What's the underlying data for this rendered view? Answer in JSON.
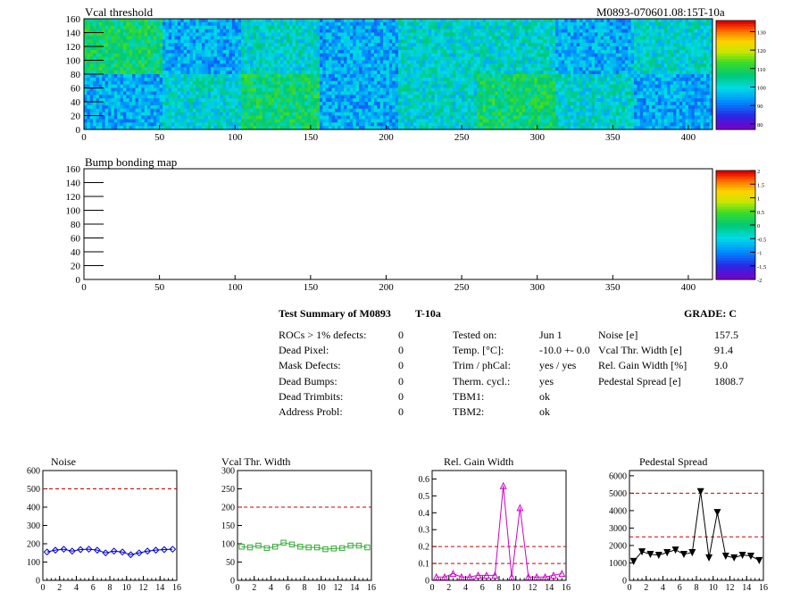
{
  "maps": [
    {
      "title": "Vcal threshold",
      "id_label": "M0893-070601.08:15T-10a",
      "xlim": [
        0,
        416
      ],
      "ylim": [
        0,
        160
      ],
      "xticks": [
        0,
        50,
        100,
        150,
        200,
        250,
        300,
        350,
        400
      ],
      "yticks": [
        0,
        20,
        40,
        60,
        80,
        100,
        120,
        140,
        160
      ],
      "palette_ticks": [
        "80",
        "90",
        "100",
        "110",
        "120",
        "130"
      ],
      "palette_values": [
        80,
        90,
        100,
        110,
        120,
        130
      ],
      "palette_range": [
        77,
        136
      ],
      "roc_tiles": [
        {
          "row": "top",
          "col": 0,
          "level": "green"
        },
        {
          "row": "top",
          "col": 1,
          "level": "blue"
        },
        {
          "row": "top",
          "col": 2,
          "level": "cyan"
        },
        {
          "row": "top",
          "col": 3,
          "level": "blue"
        },
        {
          "row": "top",
          "col": 4,
          "level": "cyan"
        },
        {
          "row": "top",
          "col": 5,
          "level": "cyan"
        },
        {
          "row": "top",
          "col": 6,
          "level": "blue"
        },
        {
          "row": "top",
          "col": 7,
          "level": "cyan"
        },
        {
          "row": "bottom",
          "col": 0,
          "level": "blue"
        },
        {
          "row": "bottom",
          "col": 1,
          "level": "cyan"
        },
        {
          "row": "bottom",
          "col": 2,
          "level": "green"
        },
        {
          "row": "bottom",
          "col": 3,
          "level": "blue"
        },
        {
          "row": "bottom",
          "col": 4,
          "level": "cyan"
        },
        {
          "row": "bottom",
          "col": 5,
          "level": "green"
        },
        {
          "row": "bottom",
          "col": 6,
          "level": "cyan"
        },
        {
          "row": "bottom",
          "col": 7,
          "level": "blue"
        }
      ]
    },
    {
      "title": "Bump bonding map",
      "id_label": "",
      "xlim": [
        0,
        416
      ],
      "ylim": [
        0,
        160
      ],
      "xticks": [
        0,
        50,
        100,
        150,
        200,
        250,
        300,
        350,
        400
      ],
      "yticks": [
        0,
        20,
        40,
        60,
        80,
        100,
        120,
        140,
        160
      ],
      "palette_ticks": [
        "-2",
        "-1.5",
        "-1",
        "-0.5",
        "0",
        "0.5",
        "1",
        "1.5",
        "2"
      ],
      "palette_values": [
        -2,
        -1.5,
        -1,
        -0.5,
        0,
        0.5,
        1,
        1.5,
        2
      ],
      "palette_range": [
        -2,
        2
      ]
    }
  ],
  "summary": {
    "header": "Test Summary of M0893",
    "temp_tag": "T-10a",
    "grade": "GRADE:  C",
    "col1": [
      {
        "label": "ROCs > 1% defects:",
        "value": "0"
      },
      {
        "label": "Dead Pixel:",
        "value": "0"
      },
      {
        "label": "Mask Defects:",
        "value": "0"
      },
      {
        "label": "Dead Bumps:",
        "value": "0"
      },
      {
        "label": "Dead Trimbits:",
        "value": "0"
      },
      {
        "label": "Address Probl:",
        "value": "0"
      }
    ],
    "col2": [
      {
        "label": "Tested on:",
        "value": "Jun 1"
      },
      {
        "label": "Temp. [°C]:",
        "value": "-10.0 +- 0.0"
      },
      {
        "label": "Trim / phCal:",
        "value": "yes / yes"
      },
      {
        "label": "Therm. cycl.:",
        "value": "yes"
      },
      {
        "label": "TBM1:",
        "value": "ok"
      },
      {
        "label": "TBM2:",
        "value": "ok"
      }
    ],
    "col3": [
      {
        "label": "Noise [e]",
        "value": "157.5"
      },
      {
        "label": "Vcal Thr. Width [e]",
        "value": "91.4"
      },
      {
        "label": "Rel. Gain Width [%]",
        "value": "9.0"
      },
      {
        "label": "Pedestal Spread [e]",
        "value": "1808.7"
      }
    ]
  },
  "chart_data": [
    {
      "type": "line",
      "title": "Noise",
      "color": "#0000cc",
      "marker": "diamond",
      "x": [
        0.5,
        1.5,
        2.5,
        3.5,
        4.5,
        5.5,
        6.5,
        7.5,
        8.5,
        9.5,
        10.5,
        11.5,
        12.5,
        13.5,
        14.5,
        15.5
      ],
      "values": [
        155,
        165,
        170,
        160,
        168,
        170,
        165,
        150,
        160,
        155,
        140,
        150,
        160,
        165,
        168,
        170
      ],
      "xlim": [
        0,
        16
      ],
      "ylim": [
        0,
        600
      ],
      "xticks": [
        0,
        2,
        4,
        6,
        8,
        10,
        12,
        14,
        16
      ],
      "yticks": [
        0,
        100,
        200,
        300,
        400,
        500,
        600
      ],
      "ref_lines": [
        500
      ]
    },
    {
      "type": "line",
      "title": "Vcal Thr. Width",
      "color": "#33aa33",
      "marker": "square",
      "x": [
        0.5,
        1.5,
        2.5,
        3.5,
        4.5,
        5.5,
        6.5,
        7.5,
        8.5,
        9.5,
        10.5,
        11.5,
        12.5,
        13.5,
        14.5,
        15.5
      ],
      "values": [
        92,
        90,
        95,
        88,
        92,
        103,
        98,
        92,
        90,
        90,
        85,
        87,
        88,
        95,
        95,
        90
      ],
      "xlim": [
        0,
        16
      ],
      "ylim": [
        0,
        300
      ],
      "xticks": [
        0,
        2,
        4,
        6,
        8,
        10,
        12,
        14,
        16
      ],
      "yticks": [
        0,
        50,
        100,
        150,
        200,
        250,
        300
      ],
      "ref_lines": [
        200
      ]
    },
    {
      "type": "line",
      "title": "Rel. Gain Width",
      "color": "#cc00cc",
      "marker": "triangle",
      "x": [
        0.5,
        1.5,
        2.5,
        3.5,
        4.5,
        5.5,
        6.5,
        7.5,
        8.5,
        9.5,
        10.5,
        11.5,
        12.5,
        13.5,
        14.5,
        15.5
      ],
      "values": [
        0.02,
        0.02,
        0.04,
        0.02,
        0.02,
        0.03,
        0.03,
        0.03,
        0.56,
        0.02,
        0.43,
        0.02,
        0.02,
        0.02,
        0.03,
        0.04
      ],
      "xlim": [
        0,
        16
      ],
      "ylim": [
        0,
        0.65
      ],
      "xticks": [
        0,
        2,
        4,
        6,
        8,
        10,
        12,
        14,
        16
      ],
      "yticks": [
        0,
        0.1,
        0.2,
        0.3,
        0.4,
        0.5,
        0.6
      ],
      "ref_lines": [
        0.1,
        0.2
      ]
    },
    {
      "type": "line",
      "title": "Pedestal Spread",
      "color": "#000000",
      "marker": "triangle-down",
      "x": [
        0.5,
        1.5,
        2.5,
        3.5,
        4.5,
        5.5,
        6.5,
        7.5,
        8.5,
        9.5,
        10.5,
        11.5,
        12.5,
        13.5,
        14.5,
        15.5
      ],
      "values": [
        1100,
        1650,
        1500,
        1450,
        1600,
        1750,
        1500,
        1600,
        5100,
        1300,
        3900,
        1400,
        1300,
        1450,
        1400,
        1150
      ],
      "xlim": [
        0,
        16
      ],
      "ylim": [
        0,
        6300
      ],
      "xticks": [
        0,
        2,
        4,
        6,
        8,
        10,
        12,
        14,
        16
      ],
      "yticks": [
        0,
        1000,
        2000,
        3000,
        4000,
        5000,
        6000
      ],
      "ref_lines": [
        2500,
        5000
      ]
    }
  ]
}
